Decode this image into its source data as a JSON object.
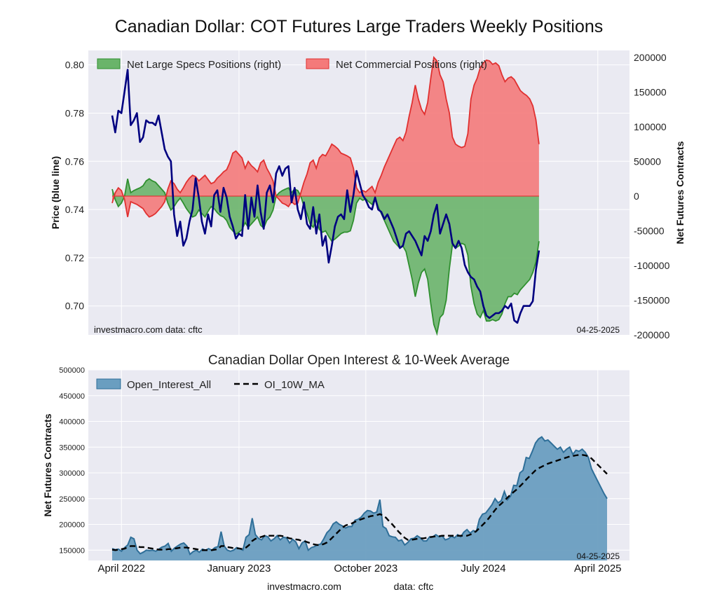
{
  "title": "Canadian Dollar: COT Futures Large Traders Weekly Positions",
  "footer": {
    "left": "investmacro.com",
    "right": "data: cftc"
  },
  "colors": {
    "plot_bg": "#eaeaf2",
    "grid": "#ffffff",
    "price": "#000080",
    "specs_fill": "#6ab46a",
    "specs_line": "#2f8f2f",
    "comm_fill": "#f47a7a",
    "comm_line": "#e03030",
    "oi_fill": "#6a9ec0",
    "oi_line": "#2f6f99",
    "ma": "#000000"
  },
  "chart_data": [
    {
      "type": "line",
      "title": "",
      "xlabel": "",
      "ylabel": "Price (blue line)",
      "ylabel_right": "Net Futures Contracts",
      "annotation_left": "investmacro.com   data: cftc",
      "annotation_right": "04-25-2025",
      "ylim": [
        0.688,
        0.806
      ],
      "ylim_right": [
        -200000,
        210000
      ],
      "yticks": [
        "0.80",
        "0.78",
        "0.76",
        "0.74",
        "0.72",
        "0.70"
      ],
      "ytick_values": [
        0.8,
        0.78,
        0.76,
        0.74,
        0.72,
        0.7
      ],
      "yticks_right": [
        "200000",
        "150000",
        "100000",
        "50000",
        "0",
        "-50000",
        "-100000",
        "-150000",
        "-200000"
      ],
      "ytick_right_values": [
        200000,
        150000,
        100000,
        50000,
        0,
        -50000,
        -100000,
        -150000,
        -200000
      ],
      "legend_position": "top-left",
      "legend": [
        "Net Large Specs Positions (right)",
        "Net Commercial Positions (right)"
      ],
      "x_range": [
        0,
        160
      ],
      "series": [
        {
          "name": "Net Large Specs Positions (right)",
          "axis": "right",
          "style": "area",
          "values": [
            10000,
            -5000,
            -15000,
            -10000,
            0,
            25000,
            5000,
            8000,
            10000,
            12000,
            15000,
            22000,
            25000,
            22000,
            20000,
            15000,
            10000,
            5000,
            -10000,
            -20000,
            -15000,
            -8000,
            -3000,
            -10000,
            -18000,
            -24000,
            -30000,
            -28000,
            -20000,
            -25000,
            -30000,
            -22000,
            -15000,
            -18000,
            -24000,
            -28000,
            -30000,
            -35000,
            -45000,
            -50000,
            -55000,
            -52000,
            -48000,
            -38000,
            -45000,
            -40000,
            -35000,
            -30000,
            -42000,
            -46000,
            -35000,
            -30000,
            -20000,
            0,
            5000,
            8000,
            10000,
            12000,
            5000,
            10000,
            8000,
            0,
            -15000,
            -25000,
            -40000,
            -45000,
            -35000,
            -48000,
            -52000,
            -50000,
            -58000,
            -65000,
            -62000,
            -58000,
            -54000,
            -52000,
            -52000,
            -50000,
            -35000,
            -10000,
            -3000,
            -6000,
            -4000,
            -8000,
            -12000,
            -2000,
            -15000,
            -25000,
            -35000,
            -45000,
            -55000,
            -65000,
            -70000,
            -75000,
            -72000,
            -80000,
            -100000,
            -120000,
            -145000,
            -125000,
            -110000,
            -105000,
            -120000,
            -155000,
            -185000,
            -198000,
            -175000,
            -170000,
            -150000,
            -105000,
            -70000,
            -75000,
            -72000,
            -68000,
            -70000,
            -85000,
            -130000,
            -155000,
            -170000,
            -175000,
            -165000,
            -180000,
            -180000,
            -178000,
            -180000,
            -178000,
            -170000,
            -155000,
            -145000,
            -145000,
            -140000,
            -142000,
            -135000,
            -130000,
            -125000,
            -120000,
            -110000,
            -95000,
            -65000
          ]
        },
        {
          "name": "Net Commercial Positions (right)",
          "axis": "right",
          "style": "area",
          "values": [
            -10000,
            5000,
            12000,
            8000,
            -5000,
            -30000,
            -8000,
            -10000,
            -12000,
            -15000,
            -18000,
            -25000,
            -30000,
            -28000,
            -25000,
            -20000,
            -15000,
            -8000,
            10000,
            22000,
            18000,
            10000,
            5000,
            12000,
            20000,
            26000,
            30000,
            28000,
            22000,
            26000,
            30000,
            24000,
            18000,
            20000,
            26000,
            30000,
            35000,
            38000,
            48000,
            62000,
            65000,
            60000,
            55000,
            40000,
            50000,
            44000,
            40000,
            35000,
            48000,
            52000,
            40000,
            32000,
            22000,
            0,
            -5000,
            -10000,
            -12000,
            -15000,
            -8000,
            -12000,
            -10000,
            5000,
            20000,
            32000,
            48000,
            52000,
            40000,
            55000,
            60000,
            58000,
            66000,
            75000,
            72000,
            68000,
            62000,
            60000,
            58000,
            55000,
            40000,
            12000,
            5000,
            8000,
            6000,
            10000,
            14000,
            5000,
            20000,
            30000,
            42000,
            52000,
            62000,
            72000,
            82000,
            85000,
            80000,
            92000,
            115000,
            135000,
            160000,
            140000,
            125000,
            118000,
            135000,
            170000,
            200000,
            195000,
            175000,
            165000,
            140000,
            120000,
            85000,
            75000,
            72000,
            70000,
            72000,
            90000,
            140000,
            160000,
            170000,
            185000,
            192000,
            196000,
            195000,
            190000,
            192000,
            188000,
            175000,
            165000,
            170000,
            172000,
            168000,
            160000,
            152000,
            148000,
            145000,
            140000,
            130000,
            110000,
            75000
          ]
        },
        {
          "name": "Price (blue line)",
          "axis": "left",
          "style": "line",
          "values": [
            0.779,
            0.772,
            0.781,
            0.78,
            0.789,
            0.798,
            0.775,
            0.777,
            0.78,
            0.768,
            0.77,
            0.777,
            0.776,
            0.776,
            0.775,
            0.779,
            0.772,
            0.765,
            0.762,
            0.76,
            0.738,
            0.729,
            0.735,
            0.725,
            0.728,
            0.735,
            0.74,
            0.753,
            0.745,
            0.735,
            0.73,
            0.738,
            0.733,
            0.746,
            0.748,
            0.739,
            0.749,
            0.745,
            0.737,
            0.733,
            0.728,
            0.73,
            0.729,
            0.746,
            0.732,
            0.745,
            0.737,
            0.75,
            0.739,
            0.732,
            0.747,
            0.75,
            0.743,
            0.755,
            0.758,
            0.754,
            0.757,
            0.758,
            0.743,
            0.749,
            0.74,
            0.736,
            0.743,
            0.734,
            0.732,
            0.741,
            0.73,
            0.738,
            0.725,
            0.729,
            0.718,
            0.725,
            0.733,
            0.737,
            0.738,
            0.736,
            0.748,
            0.739,
            0.746,
            0.756,
            0.751,
            0.746,
            0.744,
            0.741,
            0.74,
            0.745,
            0.74,
            0.739,
            0.736,
            0.738,
            0.735,
            0.732,
            0.728,
            0.724,
            0.725,
            0.73,
            0.731,
            0.729,
            0.727,
            0.724,
            0.721,
            0.729,
            0.727,
            0.731,
            0.738,
            0.742,
            0.73,
            0.734,
            0.738,
            0.734,
            0.726,
            0.724,
            0.727,
            0.724,
            0.717,
            0.714,
            0.712,
            0.711,
            0.708,
            0.706,
            0.7,
            0.696,
            0.695,
            0.696,
            0.697,
            0.697,
            0.698,
            0.7,
            0.699,
            0.701,
            0.694,
            0.693,
            0.697,
            0.7,
            0.7,
            0.7,
            0.702,
            0.715,
            0.723
          ]
        }
      ]
    },
    {
      "type": "area",
      "title": "Canadian Dollar Open Interest & 10-Week Average",
      "xlabel": "",
      "ylabel": "Net Futures Contracts",
      "annotation_right": "04-25-2025",
      "ylim": [
        130000,
        500000
      ],
      "yticks": [
        "500000",
        "450000",
        "400000",
        "350000",
        "300000",
        "250000",
        "200000",
        "150000"
      ],
      "ytick_values": [
        500000,
        450000,
        400000,
        350000,
        300000,
        250000,
        200000,
        150000
      ],
      "legend_position": "top-left",
      "legend": [
        "Open_Interest_All",
        "OI_10W_MA"
      ],
      "x_range": [
        0,
        160
      ],
      "xtick_positions": [
        3,
        41,
        82,
        120,
        157
      ],
      "xticks": [
        "April 2022",
        "January 2023",
        "October 2023",
        "July 2024",
        "April 2025"
      ],
      "series": [
        {
          "name": "Open_Interest_All",
          "style": "area",
          "values": [
            153000,
            151000,
            152000,
            148000,
            155000,
            160000,
            175000,
            172000,
            150000,
            143000,
            146000,
            150000,
            149000,
            150000,
            148000,
            152000,
            156000,
            158000,
            163000,
            148000,
            154000,
            158000,
            162000,
            164000,
            158000,
            142000,
            147000,
            150000,
            146000,
            152000,
            150000,
            153000,
            150000,
            155000,
            157000,
            186000,
            158000,
            150000,
            148000,
            150000,
            155000,
            153000,
            150000,
            175000,
            180000,
            212000,
            180000,
            173000,
            170000,
            178000,
            176000,
            168000,
            172000,
            178000,
            170000,
            175000,
            174000,
            164000,
            171000,
            166000,
            153000,
            164000,
            168000,
            150000,
            155000,
            157000,
            160000,
            162000,
            172000,
            184000,
            190000,
            201000,
            205000,
            200000,
            197000,
            193000,
            196000,
            196000,
            208000,
            210000,
            214000,
            222000,
            227000,
            226000,
            222000,
            224000,
            248000,
            196000,
            192000,
            178000,
            176000,
            175000,
            168000,
            170000,
            160000,
            165000,
            172000,
            173000,
            178000,
            174000,
            168000,
            168000,
            176000,
            176000,
            180000,
            176000,
            178000,
            170000,
            172000,
            177000,
            174000,
            180000,
            176000,
            185000,
            190000,
            183000,
            188000,
            186000,
            210000,
            220000,
            222000,
            230000,
            238000,
            250000,
            242000,
            246000,
            264000,
            248000,
            255000,
            276000,
            275000,
            300000,
            305000,
            330000,
            328000,
            342000,
            358000,
            366000,
            370000,
            362000,
            364000,
            358000,
            352000,
            346000,
            350000,
            340000,
            346000,
            350000,
            336000,
            344000,
            342000,
            346000,
            340000,
            330000,
            308000,
            296000,
            284000,
            272000,
            260000,
            250000
          ]
        },
        {
          "name": "OI_10W_MA",
          "style": "dashed",
          "values": [
            151000,
            150000,
            151000,
            152000,
            153000,
            156000,
            158000,
            158000,
            157000,
            156000,
            156000,
            155000,
            154000,
            153000,
            152000,
            151000,
            151000,
            151000,
            152000,
            152000,
            153000,
            154000,
            155000,
            155000,
            155000,
            154000,
            153000,
            152000,
            151000,
            150000,
            150000,
            150000,
            150000,
            151000,
            152000,
            158000,
            158000,
            156000,
            155000,
            154000,
            154000,
            153000,
            152000,
            155000,
            160000,
            168000,
            172000,
            174000,
            176000,
            178000,
            178000,
            178000,
            178000,
            178000,
            178000,
            177000,
            175000,
            173000,
            172000,
            171000,
            170000,
            168000,
            167000,
            165000,
            163000,
            161000,
            160000,
            160000,
            162000,
            165000,
            170000,
            176000,
            182000,
            188000,
            194000,
            198000,
            200000,
            202000,
            205000,
            208000,
            210000,
            212000,
            214000,
            216000,
            217000,
            218000,
            220000,
            217000,
            213000,
            206000,
            200000,
            193000,
            186000,
            180000,
            174000,
            170000,
            170000,
            171000,
            172000,
            173000,
            173000,
            174000,
            175000,
            176000,
            177000,
            177000,
            178000,
            178000,
            178000,
            178000,
            178000,
            178000,
            178000,
            178000,
            178000,
            180000,
            183000,
            187000,
            193000,
            199000,
            205000,
            212000,
            220000,
            228000,
            235000,
            240000,
            246000,
            252000,
            258000,
            263000,
            268000,
            274000,
            280000,
            287000,
            293000,
            299000,
            305000,
            309000,
            312000,
            315000,
            318000,
            320000,
            322000,
            324000,
            326000,
            328000,
            330000,
            332000,
            333000,
            334000,
            335000,
            335000,
            334000,
            332000,
            328000,
            322000,
            316000,
            310000,
            304000,
            298000
          ]
        }
      ]
    }
  ]
}
